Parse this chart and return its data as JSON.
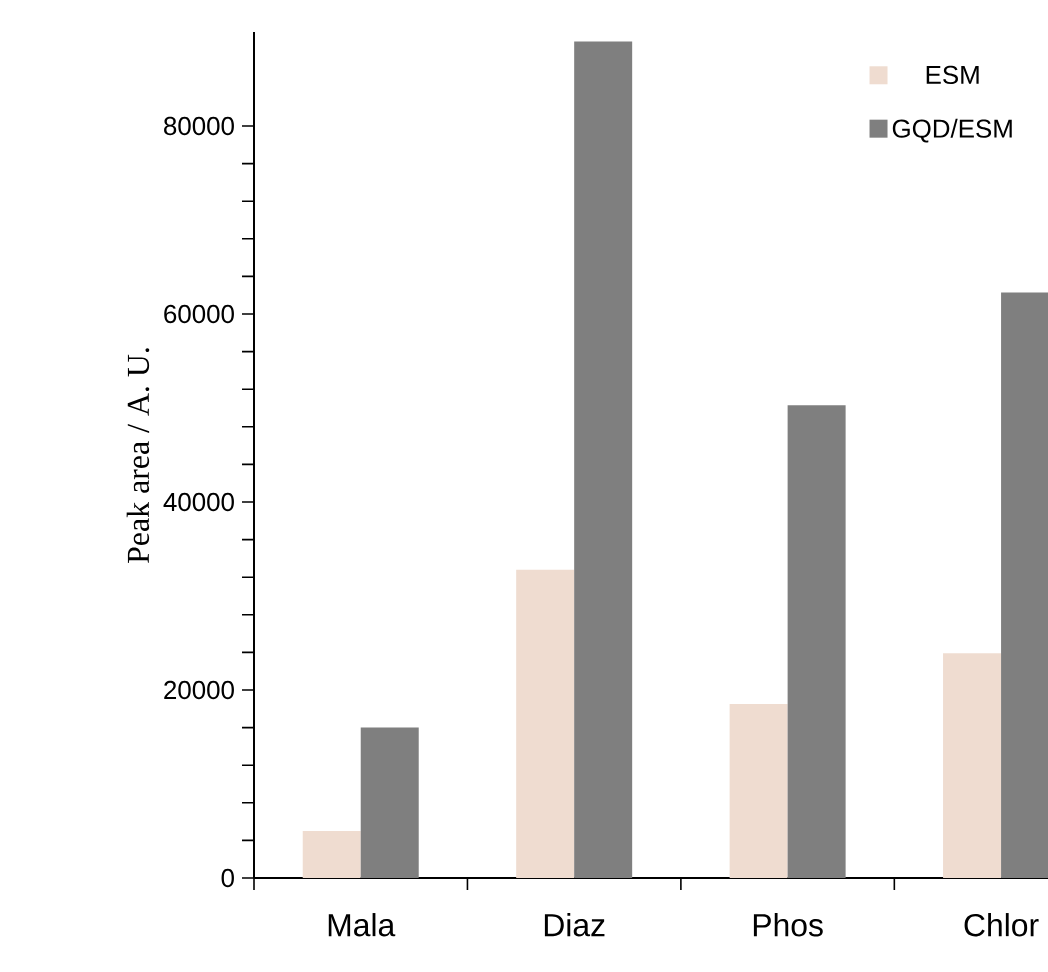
{
  "chart_data": {
    "type": "bar",
    "ylabel": "Peak area / A. U.",
    "categories": [
      "Mala",
      "Diaz",
      "Phos",
      "Chlor"
    ],
    "series": [
      {
        "name": "ESM",
        "color": "#efdcd0",
        "values": [
          5000,
          32800,
          18500,
          23900
        ]
      },
      {
        "name": "GQD/ESM",
        "color": "#7f7f7f",
        "values": [
          16000,
          89000,
          50300,
          62300
        ]
      }
    ],
    "ylim": [
      0,
      90000
    ],
    "yticks": [
      0,
      20000,
      40000,
      60000,
      80000
    ],
    "grid": false,
    "legend": "top right"
  }
}
